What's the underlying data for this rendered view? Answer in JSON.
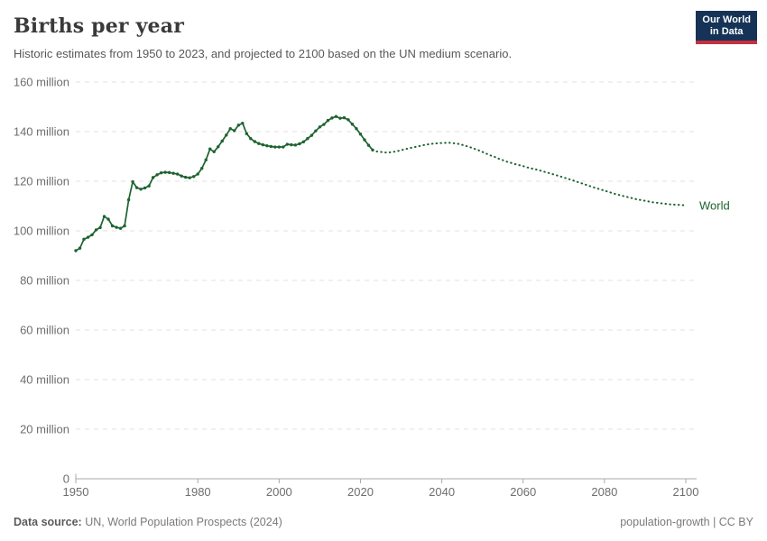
{
  "header": {
    "title": "Births per year",
    "subtitle": "Historic estimates from 1950 to 2023, and projected to 2100 based on the UN medium scenario.",
    "logo": {
      "line1": "Our World",
      "line2": "in Data",
      "bg_color": "#163357",
      "accent_color": "#c5303e"
    }
  },
  "chart_data": {
    "type": "line",
    "title": "Births per year",
    "xlabel": "",
    "ylabel": "",
    "xlim": [
      1950,
      2100
    ],
    "ylim": [
      0,
      160
    ],
    "grid": true,
    "color": "#1d6330",
    "end_label": "World",
    "xticks": [
      {
        "value": 1950,
        "label": "1950"
      },
      {
        "value": 1980,
        "label": "1980"
      },
      {
        "value": 2000,
        "label": "2000"
      },
      {
        "value": 2020,
        "label": "2020"
      },
      {
        "value": 2040,
        "label": "2040"
      },
      {
        "value": 2060,
        "label": "2060"
      },
      {
        "value": 2080,
        "label": "2080"
      },
      {
        "value": 2100,
        "label": "2100"
      }
    ],
    "yticks": [
      {
        "value": 0,
        "label": "0"
      },
      {
        "value": 20,
        "label": "20 million"
      },
      {
        "value": 40,
        "label": "40 million"
      },
      {
        "value": 60,
        "label": "60 million"
      },
      {
        "value": 80,
        "label": "80 million"
      },
      {
        "value": 100,
        "label": "100 million"
      },
      {
        "value": 120,
        "label": "120 million"
      },
      {
        "value": 140,
        "label": "140 million"
      },
      {
        "value": 160,
        "label": "160 million"
      }
    ],
    "unit": "million births",
    "cadence": "annual",
    "series": [
      {
        "name": "World (historic estimates)",
        "style": "solid",
        "markers": true,
        "start_year": 1950,
        "values": [
          92.0,
          93.0,
          96.6,
          97.4,
          98.4,
          100.4,
          101.3,
          105.8,
          104.7,
          102.0,
          101.4,
          101.0,
          102.0,
          112.5,
          119.8,
          117.4,
          116.8,
          117.3,
          118.1,
          121.5,
          122.6,
          123.4,
          123.6,
          123.5,
          123.2,
          122.9,
          122.1,
          121.6,
          121.4,
          121.9,
          122.9,
          125.2,
          128.6,
          133.0,
          131.9,
          133.9,
          136.2,
          138.6,
          141.2,
          140.4,
          142.6,
          143.4,
          139.2,
          137.2,
          136.0,
          135.2,
          134.7,
          134.3,
          134.0,
          133.8,
          133.8,
          133.8,
          134.9,
          134.7,
          134.6,
          135.1,
          135.9,
          137.2,
          138.5,
          140.3,
          141.9,
          142.9,
          144.5,
          145.5,
          146.1,
          145.4,
          145.6,
          144.8,
          143.0,
          141.2,
          139.0,
          136.7,
          134.5,
          132.6
        ]
      },
      {
        "name": "World (UN medium projection)",
        "style": "dotted",
        "markers": false,
        "start_year": 2024,
        "values": [
          132.0,
          131.8,
          131.6,
          131.6,
          131.8,
          132.1,
          132.5,
          132.9,
          133.3,
          133.7,
          134.0,
          134.4,
          134.7,
          135.0,
          135.2,
          135.3,
          135.4,
          135.5,
          135.5,
          135.3,
          135.1,
          134.7,
          134.2,
          133.7,
          133.1,
          132.5,
          131.8,
          131.1,
          130.4,
          129.8,
          129.1,
          128.5,
          127.9,
          127.4,
          126.9,
          126.5,
          126.1,
          125.6,
          125.2,
          124.8,
          124.4,
          123.9,
          123.5,
          123.0,
          122.5,
          122.0,
          121.5,
          121.0,
          120.5,
          119.9,
          119.4,
          118.8,
          118.3,
          117.7,
          117.2,
          116.7,
          116.2,
          115.7,
          115.2,
          114.7,
          114.3,
          113.9,
          113.5,
          113.1,
          112.7,
          112.4,
          112.1,
          111.8,
          111.5,
          111.3,
          111.1,
          110.9,
          110.7,
          110.6,
          110.5,
          110.4,
          110.3
        ]
      }
    ]
  },
  "footer": {
    "source_label": "Data source:",
    "source_text": " UN, World Population Prospects (2024)",
    "right_text": "population-growth | CC BY"
  }
}
